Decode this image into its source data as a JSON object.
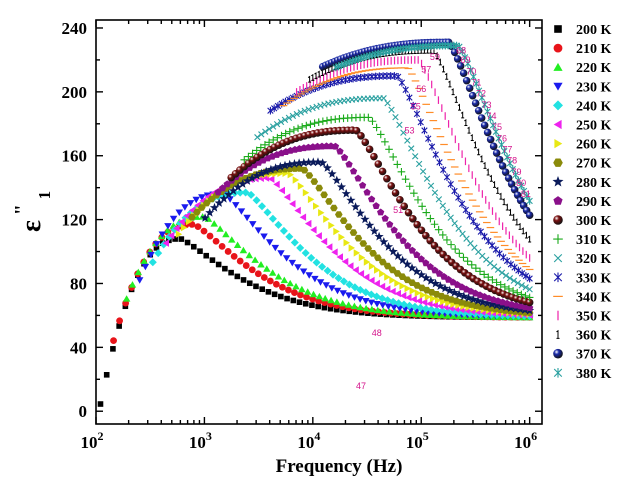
{
  "chart_data": {
    "type": "scatter",
    "xlabel": "Frequency (Hz)",
    "ylabel": "ε′′ ₁",
    "ylabel_parts": {
      "main": "ε",
      "sup": "\"",
      "sub": "1"
    },
    "x_scale": "log",
    "xlim": [
      100,
      1300000
    ],
    "ylim": [
      -8,
      245
    ],
    "x_ticks": [
      100,
      1000,
      10000,
      100000,
      1000000
    ],
    "x_tick_labels": [
      {
        "base": "10",
        "exp": "2"
      },
      {
        "base": "10",
        "exp": "3"
      },
      {
        "base": "10",
        "exp": "4"
      },
      {
        "base": "10",
        "exp": "5"
      },
      {
        "base": "10",
        "exp": "6"
      }
    ],
    "y_ticks": [
      0,
      40,
      80,
      120,
      160,
      200,
      240
    ],
    "y_tick_labels": [
      "0",
      "40",
      "80",
      "120",
      "160",
      "200",
      "240"
    ],
    "grid": false,
    "legend_position": "right",
    "series": [
      {
        "name": "200 K",
        "marker": "square",
        "color": "#000000",
        "peak_freq": 600,
        "peak_value": 108,
        "start_value": -10
      },
      {
        "name": "210 K",
        "marker": "circle",
        "color": "#e8141a",
        "peak_freq": 800,
        "peak_value": 117,
        "start_value": 0
      },
      {
        "name": "220 K",
        "marker": "triangle-up",
        "color": "#22ee22",
        "peak_freq": 1000,
        "peak_value": 122,
        "start_value": 8
      },
      {
        "name": "230 K",
        "marker": "triangle-down",
        "color": "#1a1aee",
        "peak_freq": 1500,
        "peak_value": 136,
        "start_value": -12
      },
      {
        "name": "240 K",
        "marker": "diamond",
        "color": "#22e2e2",
        "peak_freq": 2500,
        "peak_value": 137,
        "start_value": 2
      },
      {
        "name": "250 K",
        "marker": "triangle-left",
        "color": "#ee22ee",
        "peak_freq": 4000,
        "peak_value": 146,
        "start_value": 6
      },
      {
        "name": "260 K",
        "marker": "triangle-right",
        "color": "#e8e814",
        "peak_freq": 6000,
        "peak_value": 149,
        "start_value": 2
      },
      {
        "name": "270 K",
        "marker": "hexagon",
        "color": "#8a8a0a",
        "peak_freq": 8000,
        "peak_value": 152,
        "start_value": 15
      },
      {
        "name": "280 K",
        "marker": "star",
        "color": "#0a1a5a",
        "peak_freq": 12000,
        "peak_value": 156,
        "start_value": -15
      },
      {
        "name": "290 K",
        "marker": "pentagon",
        "color": "#8a108a",
        "peak_freq": 16000,
        "peak_value": 166,
        "start_value": 5
      },
      {
        "name": "300 K",
        "marker": "sphere",
        "color": "#7a1010",
        "peak_freq": 25000,
        "peak_value": 176,
        "start_value": 3
      },
      {
        "name": "310 K",
        "marker": "plus",
        "color": "#1aaa1a",
        "peak_freq": 33000,
        "peak_value": 184,
        "start_value": 10
      },
      {
        "name": "320 K",
        "marker": "cross",
        "color": "#2aa0a0",
        "peak_freq": 45000,
        "peak_value": 196,
        "start_value": 20
      },
      {
        "name": "330 K",
        "marker": "asterisk",
        "color": "#1a1aaa",
        "peak_freq": 60000,
        "peak_value": 210,
        "start_value": 36
      },
      {
        "name": "340 K",
        "marker": "dash",
        "color": "#ff8c28",
        "peak_freq": 75000,
        "peak_value": 215,
        "start_value": 0
      },
      {
        "name": "350 K",
        "marker": "vbar",
        "color": "#ee22aa",
        "peak_freq": 95000,
        "peak_value": 220,
        "start_value": 14
      },
      {
        "name": "360 K",
        "marker": "label",
        "color": "#ee22aa",
        "peak_freq": 130000,
        "peak_value": 226,
        "start_value": 25
      },
      {
        "name": "370 K",
        "marker": "sphere",
        "color": "#1a2aaa",
        "peak_freq": 180000,
        "peak_value": 231,
        "start_value": 51
      },
      {
        "name": "380 K",
        "marker": "asterisk",
        "color": "#2aa0a0",
        "peak_freq": 220000,
        "peak_value": 229,
        "start_value": 44
      }
    ],
    "annotations": {
      "series": "360 K",
      "labels": [
        "47",
        "48",
        "51",
        "53",
        "55",
        "56",
        "57",
        "59",
        "68",
        "69",
        "70",
        "71",
        "72",
        "73",
        "74",
        "75",
        "76",
        "77",
        "78",
        "79",
        "80",
        "81"
      ],
      "positions": [
        {
          "x": 25000,
          "y": 14
        },
        {
          "x": 35000,
          "y": 47
        },
        {
          "x": 55000,
          "y": 124
        },
        {
          "x": 70000,
          "y": 174
        },
        {
          "x": 80000,
          "y": 189
        },
        {
          "x": 90000,
          "y": 200
        },
        {
          "x": 100000,
          "y": 212
        },
        {
          "x": 120000,
          "y": 220
        },
        {
          "x": 210000,
          "y": 224
        },
        {
          "x": 230000,
          "y": 218
        },
        {
          "x": 260000,
          "y": 211
        },
        {
          "x": 290000,
          "y": 204
        },
        {
          "x": 320000,
          "y": 197
        },
        {
          "x": 360000,
          "y": 190
        },
        {
          "x": 400000,
          "y": 183
        },
        {
          "x": 450000,
          "y": 176
        },
        {
          "x": 500000,
          "y": 169
        },
        {
          "x": 560000,
          "y": 162
        },
        {
          "x": 620000,
          "y": 155
        },
        {
          "x": 680000,
          "y": 148
        },
        {
          "x": 750000,
          "y": 141
        },
        {
          "x": 830000,
          "y": 134
        }
      ]
    }
  }
}
